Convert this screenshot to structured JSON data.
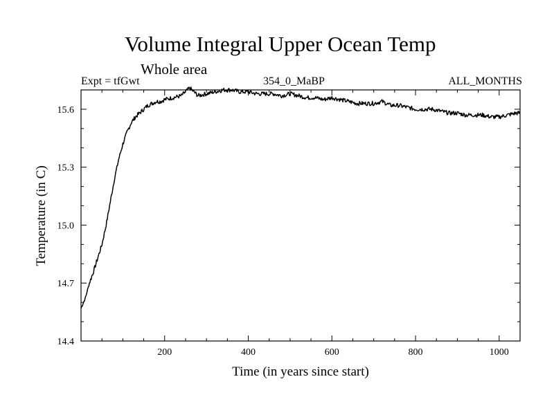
{
  "chart_data": {
    "type": "line",
    "title": "Volume Integral Upper Ocean Temp",
    "subtitle": "Whole area",
    "header_left": "Expt = tfGwt",
    "header_center": "354_0_MaBP",
    "header_right": "ALL_MONTHS",
    "xlabel": "Time (in years since start)",
    "ylabel": "Temperature (in C)",
    "xlim": [
      0,
      1050
    ],
    "ylim": [
      14.4,
      15.7
    ],
    "xticks": [
      200,
      400,
      600,
      800,
      1000
    ],
    "yticks": [
      14.4,
      14.7,
      15.0,
      15.3,
      15.6
    ],
    "x_minor_step": 50,
    "y_minor_step": 0.1,
    "series": [
      {
        "name": "Volume Integral Upper Ocean Temp",
        "color": "#000000",
        "x": [
          0,
          10,
          20,
          30,
          40,
          50,
          60,
          70,
          80,
          90,
          100,
          110,
          120,
          130,
          140,
          150,
          160,
          170,
          180,
          190,
          200,
          220,
          240,
          250,
          260,
          270,
          280,
          300,
          320,
          340,
          360,
          380,
          400,
          420,
          440,
          460,
          480,
          500,
          520,
          540,
          560,
          580,
          600,
          620,
          640,
          660,
          680,
          700,
          720,
          740,
          760,
          780,
          800,
          820,
          840,
          860,
          880,
          900,
          920,
          940,
          960,
          980,
          1000,
          1020,
          1040,
          1050
        ],
        "values": [
          14.57,
          14.62,
          14.7,
          14.76,
          14.83,
          14.9,
          15.0,
          15.12,
          15.24,
          15.34,
          15.42,
          15.48,
          15.53,
          15.56,
          15.58,
          15.6,
          15.62,
          15.63,
          15.64,
          15.64,
          15.65,
          15.66,
          15.67,
          15.69,
          15.71,
          15.69,
          15.67,
          15.68,
          15.69,
          15.7,
          15.7,
          15.69,
          15.69,
          15.68,
          15.68,
          15.68,
          15.67,
          15.68,
          15.67,
          15.66,
          15.66,
          15.65,
          15.66,
          15.65,
          15.64,
          15.63,
          15.63,
          15.63,
          15.64,
          15.62,
          15.62,
          15.61,
          15.6,
          15.6,
          15.6,
          15.59,
          15.58,
          15.58,
          15.57,
          15.57,
          15.57,
          15.56,
          15.56,
          15.57,
          15.58,
          15.58
        ]
      }
    ]
  }
}
